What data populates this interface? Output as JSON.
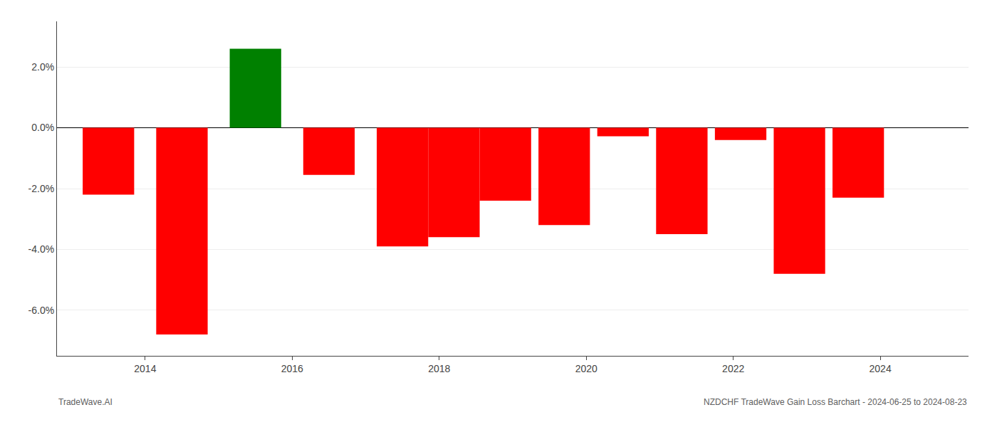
{
  "chart_data": {
    "type": "bar",
    "x": [
      2013.5,
      2014.5,
      2015.5,
      2016.5,
      2017.5,
      2018.2,
      2018.9,
      2019.7,
      2020.5,
      2021.3,
      2022.1,
      2022.9,
      2023.7
    ],
    "values": [
      -2.2,
      -6.8,
      2.6,
      -1.55,
      -3.9,
      -3.6,
      -2.4,
      -3.2,
      -0.28,
      -3.5,
      -0.4,
      -4.8,
      -2.3
    ],
    "colors": [
      "#ff0000",
      "#ff0000",
      "#008000",
      "#ff0000",
      "#ff0000",
      "#ff0000",
      "#ff0000",
      "#ff0000",
      "#ff0000",
      "#ff0000",
      "#ff0000",
      "#ff0000",
      "#ff0000"
    ],
    "xlim": [
      2012.8,
      2025.2
    ],
    "xticks": [
      2014,
      2016,
      2018,
      2020,
      2022,
      2024
    ],
    "ylim": [
      -7.5,
      3.5
    ],
    "yticks": [
      {
        "value": -6.0,
        "label": "-6.0%"
      },
      {
        "value": -4.0,
        "label": "-4.0%"
      },
      {
        "value": -2.0,
        "label": "-2.0%"
      },
      {
        "value": 0.0,
        "label": "0.0%"
      },
      {
        "value": 2.0,
        "label": "2.0%"
      }
    ],
    "grid": "y",
    "annotations": [
      "TradeWave.AI",
      "NZDCHF TradeWave Gain Loss Barchart - 2024-06-25 to 2024-08-23"
    ]
  }
}
